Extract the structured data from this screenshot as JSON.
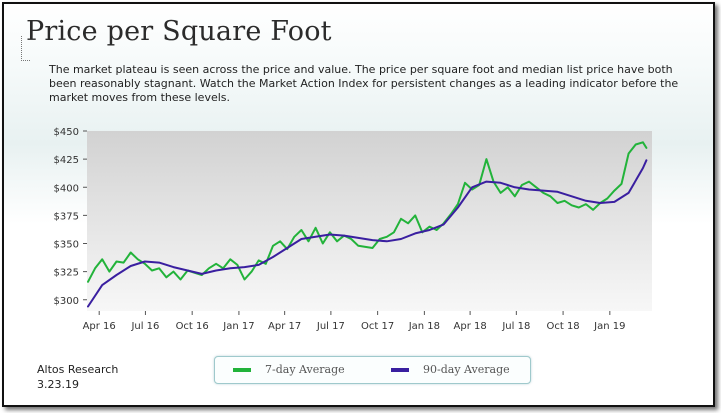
{
  "header": {
    "title": "Price per Square Foot",
    "description": "The market plateau is seen across the price and value. The price per square foot and median list price have both been reasonably stagnant. Watch the Market Action Index for persistent changes as a leading indicator before the market moves from these levels."
  },
  "footer": {
    "source": "Altos Research",
    "date": "3.23.19"
  },
  "colors": {
    "series_7day": "#22b33a",
    "series_90day": "#3a1fa0",
    "plot_top": "#d2d2d2",
    "plot_bottom": "#f7f7f7"
  },
  "chart_data": {
    "type": "line",
    "title": "Price per Square Foot",
    "ylim": [
      290,
      450
    ],
    "y_ticks": [
      "$300",
      "$325",
      "$350",
      "$375",
      "$400",
      "$425",
      "$450"
    ],
    "y_tick_values": [
      300,
      325,
      350,
      375,
      400,
      425,
      450
    ],
    "x_ticks": [
      "Apr 16",
      "Jul 16",
      "Oct 16",
      "Jan 17",
      "Apr 17",
      "Jul 17",
      "Oct 17",
      "Jan 18",
      "Apr 18",
      "Jul 18",
      "Oct 18",
      "Jan 19"
    ],
    "x_tick_dates": [
      "2016-04-01",
      "2016-07-01",
      "2016-10-01",
      "2017-01-01",
      "2017-04-01",
      "2017-07-01",
      "2017-10-01",
      "2018-01-01",
      "2018-04-01",
      "2018-07-01",
      "2018-10-01",
      "2019-01-01"
    ],
    "xlim": [
      "2016-03-08",
      "2019-03-25"
    ],
    "grid": false,
    "legend": "bottom",
    "series": [
      {
        "name": "7-day Average",
        "x": [
          "2016-03-10",
          "2016-03-24",
          "2016-04-07",
          "2016-04-21",
          "2016-05-05",
          "2016-05-19",
          "2016-06-02",
          "2016-06-16",
          "2016-06-30",
          "2016-07-14",
          "2016-07-28",
          "2016-08-11",
          "2016-08-25",
          "2016-09-08",
          "2016-09-22",
          "2016-10-06",
          "2016-10-20",
          "2016-11-03",
          "2016-11-17",
          "2016-12-01",
          "2016-12-15",
          "2016-12-29",
          "2017-01-12",
          "2017-01-26",
          "2017-02-09",
          "2017-02-23",
          "2017-03-09",
          "2017-03-23",
          "2017-04-06",
          "2017-04-20",
          "2017-05-04",
          "2017-05-18",
          "2017-06-01",
          "2017-06-15",
          "2017-06-29",
          "2017-07-13",
          "2017-07-27",
          "2017-08-10",
          "2017-08-24",
          "2017-09-07",
          "2017-09-21",
          "2017-10-05",
          "2017-10-19",
          "2017-11-02",
          "2017-11-16",
          "2017-11-30",
          "2017-12-14",
          "2017-12-28",
          "2018-01-11",
          "2018-01-25",
          "2018-02-08",
          "2018-02-22",
          "2018-03-08",
          "2018-03-22",
          "2018-04-05",
          "2018-04-19",
          "2018-05-03",
          "2018-05-17",
          "2018-05-31",
          "2018-06-14",
          "2018-06-28",
          "2018-07-12",
          "2018-07-26",
          "2018-08-09",
          "2018-08-23",
          "2018-09-06",
          "2018-09-20",
          "2018-10-04",
          "2018-10-18",
          "2018-11-01",
          "2018-11-15",
          "2018-11-29",
          "2018-12-13",
          "2018-12-27",
          "2019-01-10",
          "2019-01-24",
          "2019-02-07",
          "2019-02-21",
          "2019-03-07",
          "2019-03-14"
        ],
        "values": [
          316,
          328,
          336,
          325,
          334,
          333,
          342,
          336,
          332,
          326,
          328,
          320,
          325,
          318,
          326,
          324,
          322,
          328,
          332,
          328,
          336,
          331,
          318,
          325,
          335,
          332,
          348,
          352,
          345,
          356,
          362,
          352,
          364,
          350,
          360,
          352,
          357,
          354,
          348,
          347,
          346,
          354,
          356,
          360,
          372,
          368,
          375,
          360,
          365,
          362,
          368,
          376,
          385,
          404,
          398,
          402,
          425,
          405,
          395,
          400,
          392,
          402,
          405,
          400,
          395,
          392,
          386,
          388,
          384,
          382,
          385,
          380,
          386,
          390,
          397,
          403,
          430,
          438,
          440,
          435
        ]
      },
      {
        "name": "90-day Average",
        "x": [
          "2016-03-10",
          "2016-04-07",
          "2016-05-05",
          "2016-06-02",
          "2016-06-30",
          "2016-07-28",
          "2016-08-25",
          "2016-09-22",
          "2016-10-20",
          "2016-11-17",
          "2016-12-15",
          "2017-01-12",
          "2017-02-09",
          "2017-03-09",
          "2017-04-06",
          "2017-05-04",
          "2017-06-01",
          "2017-06-29",
          "2017-07-27",
          "2017-08-24",
          "2017-09-21",
          "2017-10-19",
          "2017-11-16",
          "2017-12-14",
          "2018-01-11",
          "2018-02-08",
          "2018-03-08",
          "2018-04-05",
          "2018-05-03",
          "2018-05-31",
          "2018-06-28",
          "2018-07-26",
          "2018-08-23",
          "2018-09-20",
          "2018-10-18",
          "2018-11-15",
          "2018-12-13",
          "2019-01-10",
          "2019-02-07",
          "2019-03-07",
          "2019-03-14"
        ],
        "values": [
          294,
          313,
          322,
          330,
          334,
          333,
          329,
          326,
          323,
          326,
          328,
          329,
          331,
          338,
          346,
          354,
          356,
          358,
          357,
          355,
          353,
          352,
          354,
          359,
          362,
          367,
          382,
          400,
          405,
          404,
          400,
          398,
          397,
          396,
          392,
          388,
          386,
          387,
          395,
          417,
          424
        ]
      }
    ]
  }
}
